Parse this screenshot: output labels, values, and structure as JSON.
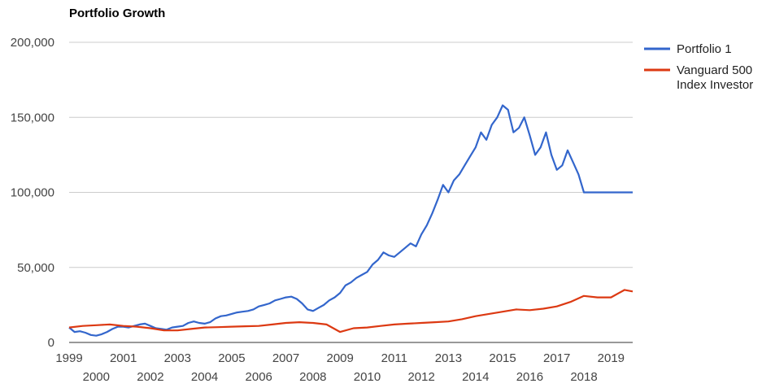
{
  "chart_data": {
    "type": "line",
    "title": "Portfolio Growth",
    "ylim": [
      0,
      200000
    ],
    "y_ticks": [
      "0",
      "50,000",
      "100,000",
      "150,000",
      "200,000"
    ],
    "y_tick_values": [
      0,
      50000,
      100000,
      150000,
      200000
    ],
    "x_range": [
      1999.0,
      2019.8
    ],
    "x_ticks_upper": [
      "1999",
      "2001",
      "2003",
      "2005",
      "2007",
      "2009",
      "2011",
      "2013",
      "2015",
      "2017",
      "2019"
    ],
    "x_ticks_lower": [
      "2000",
      "2002",
      "2004",
      "2006",
      "2008",
      "2010",
      "2012",
      "2014",
      "2016",
      "2018"
    ],
    "grid": "horizontal",
    "legend_position": "right",
    "legend_labels": [
      "Portfolio 1",
      "Vanguard 500 Index Investor"
    ],
    "series": [
      {
        "name": "Portfolio 1",
        "color": "#3366cc",
        "x": [
          1999.0,
          1999.2,
          1999.4,
          1999.6,
          1999.8,
          2000.0,
          2000.2,
          2000.4,
          2000.6,
          2000.8,
          2001.0,
          2001.2,
          2001.4,
          2001.6,
          2001.8,
          2002.0,
          2002.2,
          2002.4,
          2002.6,
          2002.8,
          2003.0,
          2003.2,
          2003.4,
          2003.6,
          2003.8,
          2004.0,
          2004.2,
          2004.4,
          2004.6,
          2004.8,
          2005.0,
          2005.2,
          2005.4,
          2005.6,
          2005.8,
          2006.0,
          2006.2,
          2006.4,
          2006.6,
          2006.8,
          2007.0,
          2007.2,
          2007.4,
          2007.6,
          2007.8,
          2008.0,
          2008.2,
          2008.4,
          2008.6,
          2008.8,
          2009.0,
          2009.2,
          2009.4,
          2009.6,
          2009.8,
          2010.0,
          2010.2,
          2010.4,
          2010.6,
          2010.8,
          2011.0,
          2011.2,
          2011.4,
          2011.6,
          2011.8,
          2012.0,
          2012.2,
          2012.4,
          2012.6,
          2012.8,
          2013.0,
          2013.2,
          2013.4,
          2013.6,
          2013.8,
          2014.0,
          2014.2,
          2014.4,
          2014.6,
          2014.8,
          2015.0,
          2015.2,
          2015.4,
          2015.6,
          2015.8,
          2016.0,
          2016.2,
          2016.4,
          2016.6,
          2016.8,
          2017.0,
          2017.2,
          2017.4,
          2017.6,
          2017.8,
          2018.0,
          2018.2,
          2018.4,
          2018.6,
          2018.8,
          2019.0,
          2019.2,
          2019.4,
          2019.6,
          2019.8
        ],
        "values": [
          10000,
          7000,
          7500,
          6500,
          5000,
          4500,
          5500,
          7000,
          9000,
          10500,
          10500,
          10000,
          11000,
          12000,
          12500,
          11000,
          9500,
          9000,
          8500,
          10000,
          10500,
          11000,
          13000,
          14000,
          13000,
          12500,
          13500,
          16000,
          17500,
          18000,
          19000,
          20000,
          20500,
          21000,
          22000,
          24000,
          25000,
          26000,
          28000,
          29000,
          30000,
          30500,
          29000,
          26000,
          22000,
          21000,
          23000,
          25000,
          28000,
          30000,
          33000,
          38000,
          40000,
          43000,
          45000,
          47000,
          52000,
          55000,
          60000,
          58000,
          57000,
          60000,
          63000,
          66000,
          64000,
          72000,
          78000,
          86000,
          95000,
          105000,
          100000,
          108000,
          112000,
          118000,
          124000,
          130000,
          140000,
          135000,
          145000,
          150000,
          158000,
          155000,
          140000,
          143000,
          150000,
          138000,
          125000,
          130000,
          140000,
          125000,
          115000,
          118000,
          128000,
          120000,
          112000,
          100000,
          100000,
          100000,
          100000,
          100000,
          100000,
          100000,
          100000,
          100000,
          100000
        ]
      },
      {
        "name": "Vanguard 500 Index Investor",
        "color": "#dc3912",
        "x": [
          1999.0,
          1999.5,
          2000.0,
          2000.5,
          2001.0,
          2001.5,
          2002.0,
          2002.5,
          2003.0,
          2003.5,
          2004.0,
          2004.5,
          2005.0,
          2005.5,
          2006.0,
          2006.5,
          2007.0,
          2007.5,
          2008.0,
          2008.5,
          2009.0,
          2009.5,
          2010.0,
          2010.5,
          2011.0,
          2011.5,
          2012.0,
          2012.5,
          2013.0,
          2013.5,
          2014.0,
          2014.5,
          2015.0,
          2015.5,
          2016.0,
          2016.5,
          2017.0,
          2017.5,
          2018.0,
          2018.5,
          2019.0,
          2019.5,
          2019.8
        ],
        "values": [
          10000,
          11000,
          11500,
          12000,
          11000,
          10500,
          9500,
          8000,
          8000,
          9000,
          10000,
          10200,
          10500,
          10800,
          11000,
          12000,
          13000,
          13500,
          13000,
          12000,
          7000,
          9500,
          10000,
          11000,
          12000,
          12500,
          13000,
          13500,
          14000,
          15500,
          17500,
          19000,
          20500,
          22000,
          21500,
          22500,
          24000,
          27000,
          31000,
          30000,
          30000,
          35000,
          34000
        ]
      }
    ]
  }
}
